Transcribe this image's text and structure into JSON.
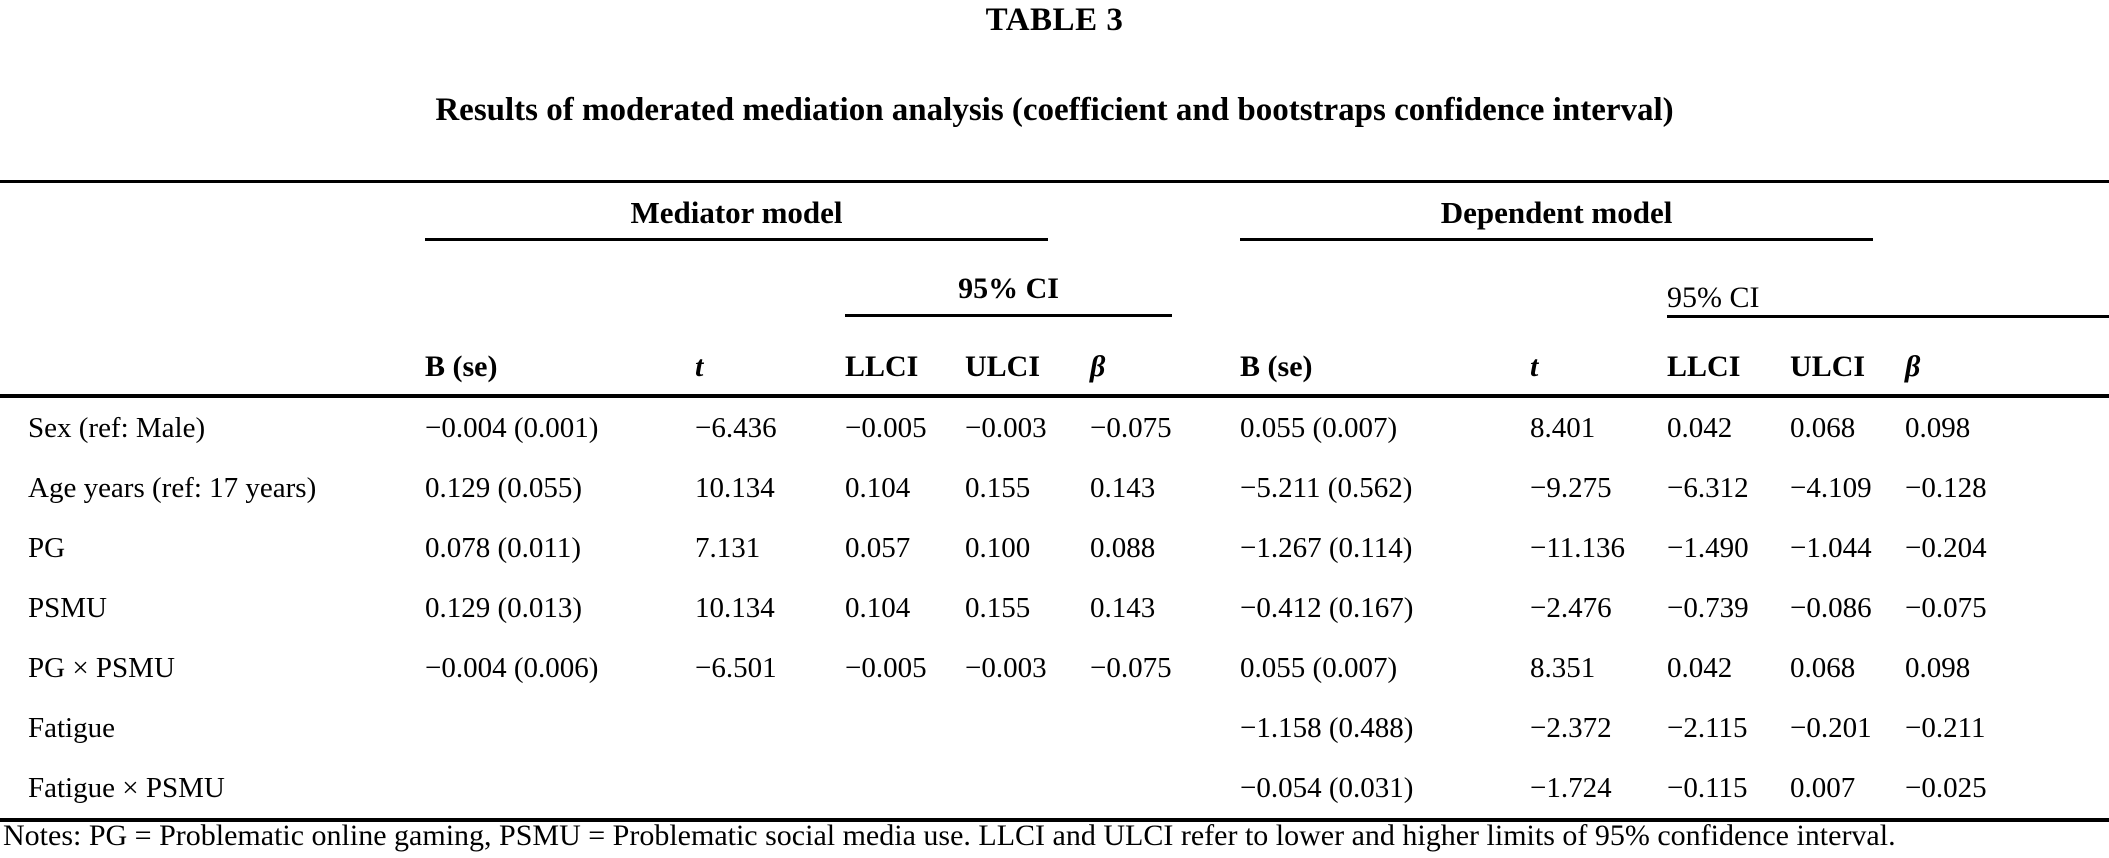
{
  "title": "TABLE 3",
  "subtitle": "Results of moderated mediation analysis (coefficient and bootstraps confidence interval)",
  "table": {
    "group_headers": {
      "mediator": "Mediator model",
      "dependent": "Dependent model"
    },
    "ci_header": "95% CI",
    "columns": {
      "b": "B (se)",
      "t": "t",
      "llci": "LLCI",
      "ulci": "ULCI",
      "beta": "β"
    },
    "rows": [
      {
        "label": "Sex (ref: Male)",
        "mediator": {
          "b": "−0.004 (0.001)",
          "t": "−6.436",
          "llci": "−0.005",
          "ulci": "−0.003",
          "beta": "−0.075"
        },
        "dependent": {
          "b": "0.055 (0.007)",
          "t": "8.401",
          "llci": "0.042",
          "ulci": "0.068",
          "beta": "0.098"
        }
      },
      {
        "label": "Age years (ref: 17 years)",
        "mediator": {
          "b": "0.129 (0.055)",
          "t": "10.134",
          "llci": "0.104",
          "ulci": "0.155",
          "beta": "0.143"
        },
        "dependent": {
          "b": "−5.211 (0.562)",
          "t": "−9.275",
          "llci": "−6.312",
          "ulci": "−4.109",
          "beta": "−0.128"
        }
      },
      {
        "label": "PG",
        "mediator": {
          "b": "0.078 (0.011)",
          "t": "7.131",
          "llci": "0.057",
          "ulci": "0.100",
          "beta": "0.088"
        },
        "dependent": {
          "b": "−1.267 (0.114)",
          "t": "−11.136",
          "llci": "−1.490",
          "ulci": "−1.044",
          "beta": "−0.204"
        }
      },
      {
        "label": "PSMU",
        "mediator": {
          "b": "0.129 (0.013)",
          "t": "10.134",
          "llci": "0.104",
          "ulci": "0.155",
          "beta": "0.143"
        },
        "dependent": {
          "b": "−0.412 (0.167)",
          "t": "−2.476",
          "llci": "−0.739",
          "ulci": "−0.086",
          "beta": "−0.075"
        }
      },
      {
        "label": "PG × PSMU",
        "mediator": {
          "b": "−0.004 (0.006)",
          "t": "−6.501",
          "llci": "−0.005",
          "ulci": "−0.003",
          "beta": "−0.075"
        },
        "dependent": {
          "b": "0.055 (0.007)",
          "t": "8.351",
          "llci": "0.042",
          "ulci": "0.068",
          "beta": "0.098"
        }
      },
      {
        "label": "Fatigue",
        "mediator": {
          "b": "",
          "t": "",
          "llci": "",
          "ulci": "",
          "beta": ""
        },
        "dependent": {
          "b": "−1.158 (0.488)",
          "t": "−2.372",
          "llci": "−2.115",
          "ulci": "−0.201",
          "beta": "−0.211"
        }
      },
      {
        "label": "Fatigue × PSMU",
        "mediator": {
          "b": "",
          "t": "",
          "llci": "",
          "ulci": "",
          "beta": ""
        },
        "dependent": {
          "b": "−0.054 (0.031)",
          "t": "−1.724",
          "llci": "−0.115",
          "ulci": "0.007",
          "beta": "−0.025"
        }
      }
    ]
  },
  "notes": "Notes: PG = Problematic online gaming, PSMU = Problematic social media use. LLCI and ULCI refer to lower and higher limits of 95% confidence interval."
}
